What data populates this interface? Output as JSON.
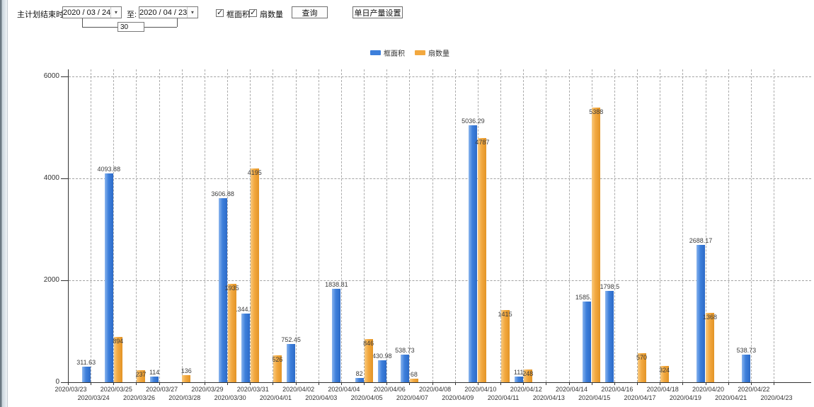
{
  "toolbar": {
    "plan_end_label": "主计划结束时间:",
    "date_from": "2020 / 03 / 24",
    "to_label": "至:",
    "date_to": "2020 / 04 / 23",
    "days_between": "30",
    "checkbox_frame_area_label": "框面积",
    "checkbox_fan_count_label": "扇数量",
    "query_button": "查询",
    "daily_output_button": "单日产量设置"
  },
  "legend": {
    "items": [
      {
        "label": "框面积",
        "color": "#3d7fdb"
      },
      {
        "label": "扇数量",
        "color": "#f2a83f"
      }
    ]
  },
  "chart_data": {
    "type": "bar",
    "title": "",
    "xlabel": "",
    "ylabel": "",
    "ylim": [
      0,
      6000
    ],
    "yticks": [
      0,
      2000,
      4000,
      6000
    ],
    "grid": true,
    "legend_position": "top",
    "categories": [
      "2020/03/23",
      "2020/03/24",
      "2020/03/25",
      "2020/03/26",
      "2020/03/27",
      "2020/03/28",
      "2020/03/29",
      "2020/03/30",
      "2020/03/31",
      "2020/04/01",
      "2020/04/02",
      "2020/04/03",
      "2020/04/04",
      "2020/04/05",
      "2020/04/06",
      "2020/04/07",
      "2020/04/08",
      "2020/04/09",
      "2020/04/10",
      "2020/04/11",
      "2020/04/12",
      "2020/04/13",
      "2020/04/14",
      "2020/04/15",
      "2020/04/16",
      "2020/04/17",
      "2020/04/18",
      "2020/04/19",
      "2020/04/20",
      "2020/04/21",
      "2020/04/22",
      "2020/04/23"
    ],
    "series": [
      {
        "name": "框面积",
        "color": "#3d7fdb",
        "values": [
          0,
          311.63,
          4093.88,
          0,
          114,
          0,
          0,
          3606.88,
          1344.95,
          0,
          752.45,
          0,
          1838.81,
          82,
          430.98,
          538.73,
          0,
          0,
          5036.29,
          0,
          111,
          0,
          0,
          1585.96,
          1798.5,
          0,
          0,
          0,
          2688.17,
          0,
          538.73,
          0
        ]
      },
      {
        "name": "扇数量",
        "color": "#f2a83f",
        "values": [
          0,
          0,
          894,
          237,
          0,
          136,
          0,
          1935,
          4195,
          526,
          0,
          0,
          0,
          846,
          0,
          68,
          0,
          0,
          4787,
          1415,
          248,
          0,
          0,
          5388,
          0,
          570,
          324,
          0,
          1368,
          0,
          0,
          0
        ]
      }
    ]
  }
}
